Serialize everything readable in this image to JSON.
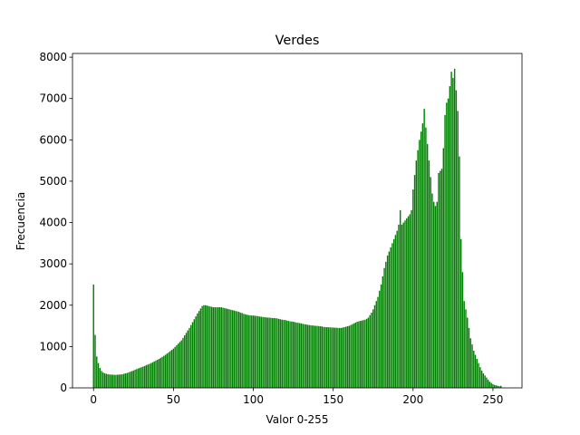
{
  "chart_data": {
    "type": "bar",
    "title": "Verdes",
    "x_label": "Valor 0-255",
    "y_label": "Frecuencia",
    "color": "#008000",
    "x": [
      0,
      1,
      2,
      3,
      4,
      5,
      6,
      7,
      8,
      9,
      10,
      11,
      12,
      13,
      14,
      15,
      16,
      17,
      18,
      19,
      20,
      21,
      22,
      23,
      24,
      25,
      26,
      27,
      28,
      29,
      30,
      31,
      32,
      33,
      34,
      35,
      36,
      37,
      38,
      39,
      40,
      41,
      42,
      43,
      44,
      45,
      46,
      47,
      48,
      49,
      50,
      51,
      52,
      53,
      54,
      55,
      56,
      57,
      58,
      59,
      60,
      61,
      62,
      63,
      64,
      65,
      66,
      67,
      68,
      69,
      70,
      71,
      72,
      73,
      74,
      75,
      76,
      77,
      78,
      79,
      80,
      81,
      82,
      83,
      84,
      85,
      86,
      87,
      88,
      89,
      90,
      91,
      92,
      93,
      94,
      95,
      96,
      97,
      98,
      99,
      100,
      101,
      102,
      103,
      104,
      105,
      106,
      107,
      108,
      109,
      110,
      111,
      112,
      113,
      114,
      115,
      116,
      117,
      118,
      119,
      120,
      121,
      122,
      123,
      124,
      125,
      126,
      127,
      128,
      129,
      130,
      131,
      132,
      133,
      134,
      135,
      136,
      137,
      138,
      139,
      140,
      141,
      142,
      143,
      144,
      145,
      146,
      147,
      148,
      149,
      150,
      151,
      152,
      153,
      154,
      155,
      156,
      157,
      158,
      159,
      160,
      161,
      162,
      163,
      164,
      165,
      166,
      167,
      168,
      169,
      170,
      171,
      172,
      173,
      174,
      175,
      176,
      177,
      178,
      179,
      180,
      181,
      182,
      183,
      184,
      185,
      186,
      187,
      188,
      189,
      190,
      191,
      192,
      193,
      194,
      195,
      196,
      197,
      198,
      199,
      200,
      201,
      202,
      203,
      204,
      205,
      206,
      207,
      208,
      209,
      210,
      211,
      212,
      213,
      214,
      215,
      216,
      217,
      218,
      219,
      220,
      221,
      222,
      223,
      224,
      225,
      226,
      227,
      228,
      229,
      230,
      231,
      232,
      233,
      234,
      235,
      236,
      237,
      238,
      239,
      240,
      241,
      242,
      243,
      244,
      245,
      246,
      247,
      248,
      249,
      250,
      251,
      252,
      253,
      254,
      255
    ],
    "values": [
      2500,
      1280,
      760,
      600,
      480,
      410,
      370,
      350,
      340,
      330,
      325,
      320,
      320,
      315,
      315,
      320,
      320,
      325,
      330,
      340,
      350,
      360,
      375,
      390,
      405,
      420,
      440,
      455,
      470,
      485,
      500,
      515,
      530,
      550,
      565,
      580,
      600,
      620,
      640,
      660,
      680,
      700,
      725,
      750,
      775,
      800,
      830,
      860,
      890,
      920,
      950,
      990,
      1030,
      1070,
      1110,
      1150,
      1210,
      1270,
      1330,
      1390,
      1450,
      1520,
      1590,
      1660,
      1730,
      1800,
      1860,
      1920,
      1980,
      2000,
      2000,
      1990,
      1980,
      1970,
      1960,
      1950,
      1950,
      1950,
      1950,
      1950,
      1950,
      1940,
      1930,
      1920,
      1910,
      1900,
      1890,
      1880,
      1870,
      1860,
      1850,
      1840,
      1820,
      1810,
      1790,
      1780,
      1770,
      1760,
      1755,
      1750,
      1750,
      1745,
      1740,
      1735,
      1725,
      1720,
      1715,
      1710,
      1705,
      1700,
      1700,
      1695,
      1690,
      1690,
      1685,
      1680,
      1670,
      1660,
      1650,
      1645,
      1640,
      1630,
      1620,
      1610,
      1605,
      1600,
      1590,
      1580,
      1575,
      1565,
      1560,
      1550,
      1540,
      1535,
      1525,
      1520,
      1515,
      1510,
      1505,
      1500,
      1500,
      1495,
      1490,
      1485,
      1475,
      1470,
      1470,
      1465,
      1465,
      1460,
      1460,
      1455,
      1455,
      1450,
      1450,
      1450,
      1460,
      1470,
      1480,
      1490,
      1500,
      1520,
      1540,
      1560,
      1580,
      1600,
      1610,
      1620,
      1630,
      1640,
      1650,
      1670,
      1700,
      1760,
      1820,
      1900,
      2000,
      2100,
      2200,
      2350,
      2500,
      2700,
      2900,
      3050,
      3200,
      3300,
      3400,
      3500,
      3600,
      3700,
      3800,
      3950,
      4300,
      3950,
      4000,
      4050,
      4100,
      4150,
      4200,
      4300,
      4800,
      5150,
      5500,
      5750,
      6000,
      6200,
      6400,
      6750,
      6300,
      5900,
      5500,
      5100,
      4700,
      4500,
      4400,
      4500,
      5200,
      5250,
      5300,
      5800,
      6600,
      6900,
      7000,
      7300,
      7650,
      7500,
      7720,
      7200,
      6700,
      5600,
      3600,
      2800,
      2100,
      1900,
      1700,
      1450,
      1200,
      1050,
      900,
      800,
      700,
      600,
      500,
      420,
      350,
      300,
      250,
      200,
      150,
      120,
      90,
      70,
      60,
      50,
      40,
      50
    ],
    "xlim": [
      -13.19,
      268.19
    ],
    "xticks": [
      0,
      50,
      100,
      150,
      200,
      250
    ],
    "ylim": [
      0,
      8090
    ],
    "yticks": [
      0,
      1000,
      2000,
      3000,
      4000,
      5000,
      6000,
      7000,
      8000
    ]
  }
}
